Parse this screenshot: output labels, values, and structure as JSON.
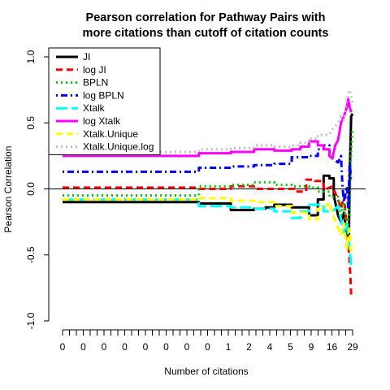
{
  "chart_data": {
    "type": "line",
    "title_lines": [
      "Pearson correlation for Pathway Pairs with",
      "more citations than cutoff of citation counts"
    ],
    "xlabel": "Number of citations",
    "ylabel": "Pearson Correlation",
    "ylim": [
      -1.0,
      1.0
    ],
    "yticks": [
      -1.0,
      -0.5,
      0.0,
      0.5,
      1.0
    ],
    "ytick_labels": [
      "-1.0",
      "-0.5",
      "0.0",
      "0.5",
      "1.0"
    ],
    "xtick_labels": [
      "0",
      "0",
      "0",
      "0",
      "0",
      "0",
      "0",
      "0",
      "1",
      "2",
      "4",
      "5",
      "9",
      "16",
      "29"
    ],
    "xtick_minor_count": 43,
    "hline": 0,
    "legend": {
      "position": "top-left",
      "entries": [
        {
          "label": "JI",
          "color": "#000000",
          "dash": "solid"
        },
        {
          "label": "log JI",
          "color": "#ff0000",
          "dash": "dashed"
        },
        {
          "label": "BPLN",
          "color": "#00cd00",
          "dash": "dotted"
        },
        {
          "label": "log BPLN",
          "color": "#0000ff",
          "dash": "dotdash"
        },
        {
          "label": "Xtalk",
          "color": "#00ffff",
          "dash": "longdash"
        },
        {
          "label": "log Xtalk",
          "color": "#ff00ff",
          "dash": "solid"
        },
        {
          "label": "Xtalk.Unique",
          "color": "#ffff00",
          "dash": "dashed"
        },
        {
          "label": "Xtalk.Unique.log",
          "color": "#bebebe",
          "dash": "dotted"
        }
      ]
    },
    "series": [
      {
        "name": "JI",
        "color": "#000000",
        "dash": "solid",
        "points": [
          [
            0,
            -0.1
          ],
          [
            0.47,
            -0.1
          ],
          [
            0.47,
            -0.11
          ],
          [
            0.58,
            -0.11
          ],
          [
            0.58,
            -0.16
          ],
          [
            0.66,
            -0.16
          ],
          [
            0.66,
            -0.15
          ],
          [
            0.7,
            -0.15
          ],
          [
            0.7,
            -0.14
          ],
          [
            0.73,
            -0.14
          ],
          [
            0.73,
            -0.12
          ],
          [
            0.79,
            -0.12
          ],
          [
            0.79,
            -0.14
          ],
          [
            0.85,
            -0.14
          ],
          [
            0.85,
            -0.2
          ],
          [
            0.88,
            -0.2
          ],
          [
            0.88,
            -0.08
          ],
          [
            0.9,
            -0.08
          ],
          [
            0.9,
            0.1
          ],
          [
            0.92,
            0.1
          ],
          [
            0.92,
            0.08
          ],
          [
            0.935,
            0.08
          ],
          [
            0.935,
            -0.05
          ],
          [
            0.95,
            -0.2
          ],
          [
            0.96,
            -0.25
          ],
          [
            0.97,
            -0.18
          ],
          [
            0.975,
            -0.28
          ],
          [
            0.98,
            -0.35
          ],
          [
            0.987,
            -0.38
          ],
          [
            0.99,
            0.1
          ],
          [
            0.995,
            0.55
          ],
          [
            1.0,
            0.57
          ]
        ]
      },
      {
        "name": "log JI",
        "color": "#ff0000",
        "dash": "dashed",
        "points": [
          [
            0,
            0.01
          ],
          [
            0.47,
            0.01
          ],
          [
            0.47,
            0.0
          ],
          [
            0.58,
            0.0
          ],
          [
            0.58,
            0.02
          ],
          [
            0.66,
            0.02
          ],
          [
            0.66,
            0.0
          ],
          [
            0.8,
            0.0
          ],
          [
            0.8,
            -0.02
          ],
          [
            0.84,
            -0.02
          ],
          [
            0.84,
            0.07
          ],
          [
            0.87,
            0.07
          ],
          [
            0.87,
            0.06
          ],
          [
            0.9,
            0.06
          ],
          [
            0.9,
            -0.01
          ],
          [
            0.93,
            0.02
          ],
          [
            0.95,
            -0.08
          ],
          [
            0.96,
            -0.15
          ],
          [
            0.97,
            -0.05
          ],
          [
            0.98,
            -0.3
          ],
          [
            0.99,
            -0.55
          ],
          [
            0.995,
            -0.8
          ]
        ]
      },
      {
        "name": "BPLN",
        "color": "#00cd00",
        "dash": "dotted",
        "points": [
          [
            0,
            -0.05
          ],
          [
            0.47,
            -0.05
          ],
          [
            0.47,
            0.02
          ],
          [
            0.58,
            0.02
          ],
          [
            0.58,
            0.03
          ],
          [
            0.66,
            0.03
          ],
          [
            0.66,
            0.05
          ],
          [
            0.73,
            0.05
          ],
          [
            0.73,
            0.03
          ],
          [
            0.79,
            0.03
          ],
          [
            0.79,
            0.02
          ],
          [
            0.85,
            0.02
          ],
          [
            0.85,
            0.01
          ],
          [
            0.88,
            0.01
          ],
          [
            0.88,
            -0.02
          ],
          [
            0.92,
            -0.02
          ],
          [
            0.92,
            -0.06
          ],
          [
            0.95,
            -0.06
          ],
          [
            0.96,
            -0.2
          ],
          [
            0.97,
            -0.1
          ],
          [
            0.98,
            -0.32
          ],
          [
            0.99,
            -0.15
          ],
          [
            0.995,
            0.3
          ],
          [
            1.0,
            0.45
          ]
        ]
      },
      {
        "name": "log BPLN",
        "color": "#0000ff",
        "dash": "dotdash",
        "points": [
          [
            0,
            0.13
          ],
          [
            0.47,
            0.13
          ],
          [
            0.47,
            0.16
          ],
          [
            0.58,
            0.16
          ],
          [
            0.58,
            0.17
          ],
          [
            0.66,
            0.17
          ],
          [
            0.66,
            0.18
          ],
          [
            0.73,
            0.18
          ],
          [
            0.73,
            0.19
          ],
          [
            0.79,
            0.19
          ],
          [
            0.79,
            0.24
          ],
          [
            0.85,
            0.24
          ],
          [
            0.85,
            0.25
          ],
          [
            0.88,
            0.25
          ],
          [
            0.88,
            0.3
          ],
          [
            0.9,
            0.3
          ],
          [
            0.9,
            0.33
          ],
          [
            0.92,
            0.33
          ],
          [
            0.92,
            0.25
          ],
          [
            0.95,
            0.2
          ],
          [
            0.96,
            0.25
          ],
          [
            0.965,
            0.02
          ],
          [
            0.97,
            -0.1
          ],
          [
            0.98,
            0.02
          ],
          [
            0.985,
            -0.15
          ],
          [
            0.99,
            0.2
          ],
          [
            0.995,
            0.05
          ]
        ]
      },
      {
        "name": "Xtalk",
        "color": "#00ffff",
        "dash": "longdash",
        "points": [
          [
            0,
            -0.08
          ],
          [
            0.47,
            -0.08
          ],
          [
            0.47,
            -0.13
          ],
          [
            0.58,
            -0.13
          ],
          [
            0.58,
            -0.14
          ],
          [
            0.66,
            -0.14
          ],
          [
            0.66,
            -0.15
          ],
          [
            0.73,
            -0.15
          ],
          [
            0.73,
            -0.17
          ],
          [
            0.79,
            -0.17
          ],
          [
            0.79,
            -0.22
          ],
          [
            0.82,
            -0.22
          ],
          [
            0.82,
            -0.17
          ],
          [
            0.85,
            -0.17
          ],
          [
            0.85,
            -0.12
          ],
          [
            0.9,
            -0.12
          ],
          [
            0.9,
            -0.17
          ],
          [
            0.93,
            -0.17
          ],
          [
            0.95,
            -0.13
          ],
          [
            0.96,
            -0.23
          ],
          [
            0.97,
            -0.33
          ],
          [
            0.98,
            -0.25
          ],
          [
            0.99,
            -0.45
          ],
          [
            0.995,
            -0.58
          ]
        ]
      },
      {
        "name": "log Xtalk",
        "color": "#ff00ff",
        "dash": "solid",
        "points": [
          [
            0,
            0.25
          ],
          [
            0.47,
            0.25
          ],
          [
            0.47,
            0.27
          ],
          [
            0.58,
            0.27
          ],
          [
            0.58,
            0.28
          ],
          [
            0.66,
            0.28
          ],
          [
            0.66,
            0.3
          ],
          [
            0.73,
            0.3
          ],
          [
            0.73,
            0.29
          ],
          [
            0.79,
            0.29
          ],
          [
            0.79,
            0.3
          ],
          [
            0.82,
            0.3
          ],
          [
            0.82,
            0.32
          ],
          [
            0.85,
            0.32
          ],
          [
            0.85,
            0.36
          ],
          [
            0.88,
            0.36
          ],
          [
            0.88,
            0.33
          ],
          [
            0.9,
            0.33
          ],
          [
            0.9,
            0.3
          ],
          [
            0.92,
            0.3
          ],
          [
            0.92,
            0.25
          ],
          [
            0.93,
            0.23
          ],
          [
            0.94,
            0.33
          ],
          [
            0.95,
            0.37
          ],
          [
            0.96,
            0.5
          ],
          [
            0.97,
            0.55
          ],
          [
            0.98,
            0.62
          ],
          [
            0.985,
            0.68
          ],
          [
            0.99,
            0.62
          ],
          [
            0.995,
            0.58
          ]
        ]
      },
      {
        "name": "Xtalk.Unique",
        "color": "#ffff00",
        "dash": "dashed",
        "points": [
          [
            0,
            -0.08
          ],
          [
            0.47,
            -0.08
          ],
          [
            0.47,
            -0.07
          ],
          [
            0.58,
            -0.07
          ],
          [
            0.58,
            -0.09
          ],
          [
            0.66,
            -0.09
          ],
          [
            0.66,
            -0.1
          ],
          [
            0.73,
            -0.1
          ],
          [
            0.73,
            -0.13
          ],
          [
            0.79,
            -0.13
          ],
          [
            0.79,
            -0.18
          ],
          [
            0.85,
            -0.18
          ],
          [
            0.85,
            -0.23
          ],
          [
            0.88,
            -0.23
          ],
          [
            0.88,
            -0.15
          ],
          [
            0.9,
            -0.15
          ],
          [
            0.92,
            -0.1
          ],
          [
            0.93,
            -0.18
          ],
          [
            0.95,
            -0.3
          ],
          [
            0.96,
            -0.35
          ],
          [
            0.97,
            -0.26
          ],
          [
            0.98,
            -0.45
          ],
          [
            0.99,
            -0.3
          ],
          [
            0.995,
            -0.5
          ]
        ]
      },
      {
        "name": "Xtalk.Unique.log",
        "color": "#bebebe",
        "dash": "dotted",
        "points": [
          [
            0,
            0.28
          ],
          [
            0.47,
            0.28
          ],
          [
            0.47,
            0.3
          ],
          [
            0.58,
            0.3
          ],
          [
            0.58,
            0.31
          ],
          [
            0.66,
            0.31
          ],
          [
            0.66,
            0.33
          ],
          [
            0.73,
            0.33
          ],
          [
            0.73,
            0.32
          ],
          [
            0.79,
            0.32
          ],
          [
            0.79,
            0.33
          ],
          [
            0.82,
            0.33
          ],
          [
            0.82,
            0.35
          ],
          [
            0.85,
            0.35
          ],
          [
            0.85,
            0.38
          ],
          [
            0.88,
            0.38
          ],
          [
            0.88,
            0.41
          ],
          [
            0.92,
            0.41
          ],
          [
            0.93,
            0.45
          ],
          [
            0.95,
            0.5
          ],
          [
            0.96,
            0.55
          ],
          [
            0.97,
            0.52
          ],
          [
            0.98,
            0.68
          ],
          [
            0.99,
            0.75
          ],
          [
            0.995,
            0.7
          ],
          [
            1.0,
            0.65
          ]
        ]
      }
    ]
  }
}
